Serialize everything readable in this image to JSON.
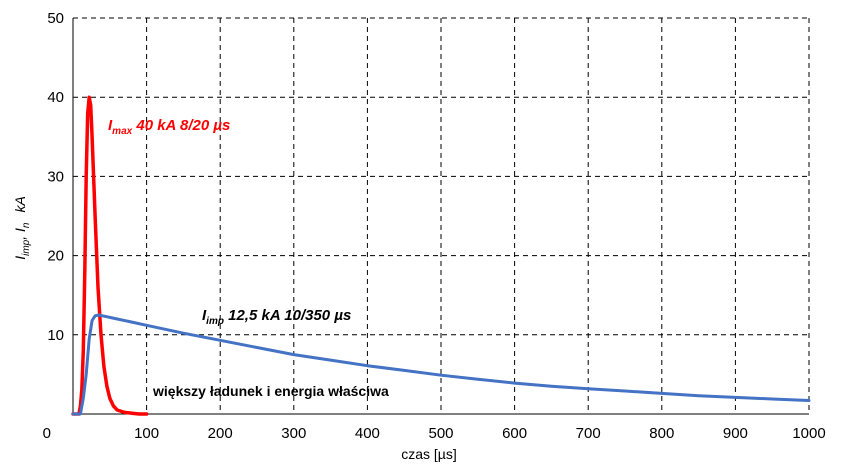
{
  "chart_data": {
    "type": "line",
    "xlabel": "czas [µs]",
    "ylabel": {
      "i1": "I",
      "s1": "imp",
      "sep": ", ",
      "i2": "I",
      "s2": "n",
      "unit": "kA"
    },
    "xlim": [
      0,
      1000
    ],
    "ylim": [
      0,
      50
    ],
    "x_ticks": [
      0,
      100,
      200,
      300,
      400,
      500,
      600,
      700,
      800,
      900,
      1000
    ],
    "y_ticks": [
      10,
      20,
      30,
      40,
      50
    ],
    "y_origin_label": "0",
    "grid": true,
    "series": [
      {
        "name": "Imax 40 kA 8/20 µs",
        "color": "#ff0000",
        "x": [
          0,
          8,
          10,
          12,
          14,
          16,
          18,
          20,
          22,
          24,
          26,
          28,
          30,
          34,
          38,
          42,
          46,
          50,
          55,
          60,
          70,
          80,
          90,
          100
        ],
        "y": [
          0,
          0,
          1,
          3,
          8,
          18,
          30,
          38,
          40,
          39,
          35,
          30,
          25,
          16,
          10,
          6,
          3.5,
          2,
          1,
          0.5,
          0.2,
          0.1,
          0,
          0
        ]
      },
      {
        "name": "Iimp 12,5 kA 10/350 µs",
        "color": "#4472c4",
        "x": [
          0,
          10,
          14,
          18,
          22,
          26,
          30,
          35,
          40,
          50,
          60,
          80,
          100,
          150,
          200,
          250,
          300,
          350,
          400,
          450,
          500,
          550,
          600,
          650,
          700,
          750,
          800,
          850,
          900,
          950,
          1000
        ],
        "y": [
          0,
          0,
          2,
          5,
          9.5,
          11.8,
          12.4,
          12.5,
          12.4,
          12.2,
          12,
          11.6,
          11.2,
          10.2,
          9.3,
          8.4,
          7.5,
          6.8,
          6.1,
          5.5,
          4.9,
          4.4,
          3.9,
          3.5,
          3.2,
          2.9,
          2.6,
          2.3,
          2.1,
          1.9,
          1.7
        ]
      }
    ],
    "annotations": {
      "red": {
        "main": "I",
        "sub": "max",
        "rest": " 40 kA 8/20 µs"
      },
      "blue": {
        "main": "I",
        "sub": "imp",
        "rest": " 12,5 kA 10/350 µs"
      },
      "note": "większy ładunek i energia właściwa"
    }
  }
}
